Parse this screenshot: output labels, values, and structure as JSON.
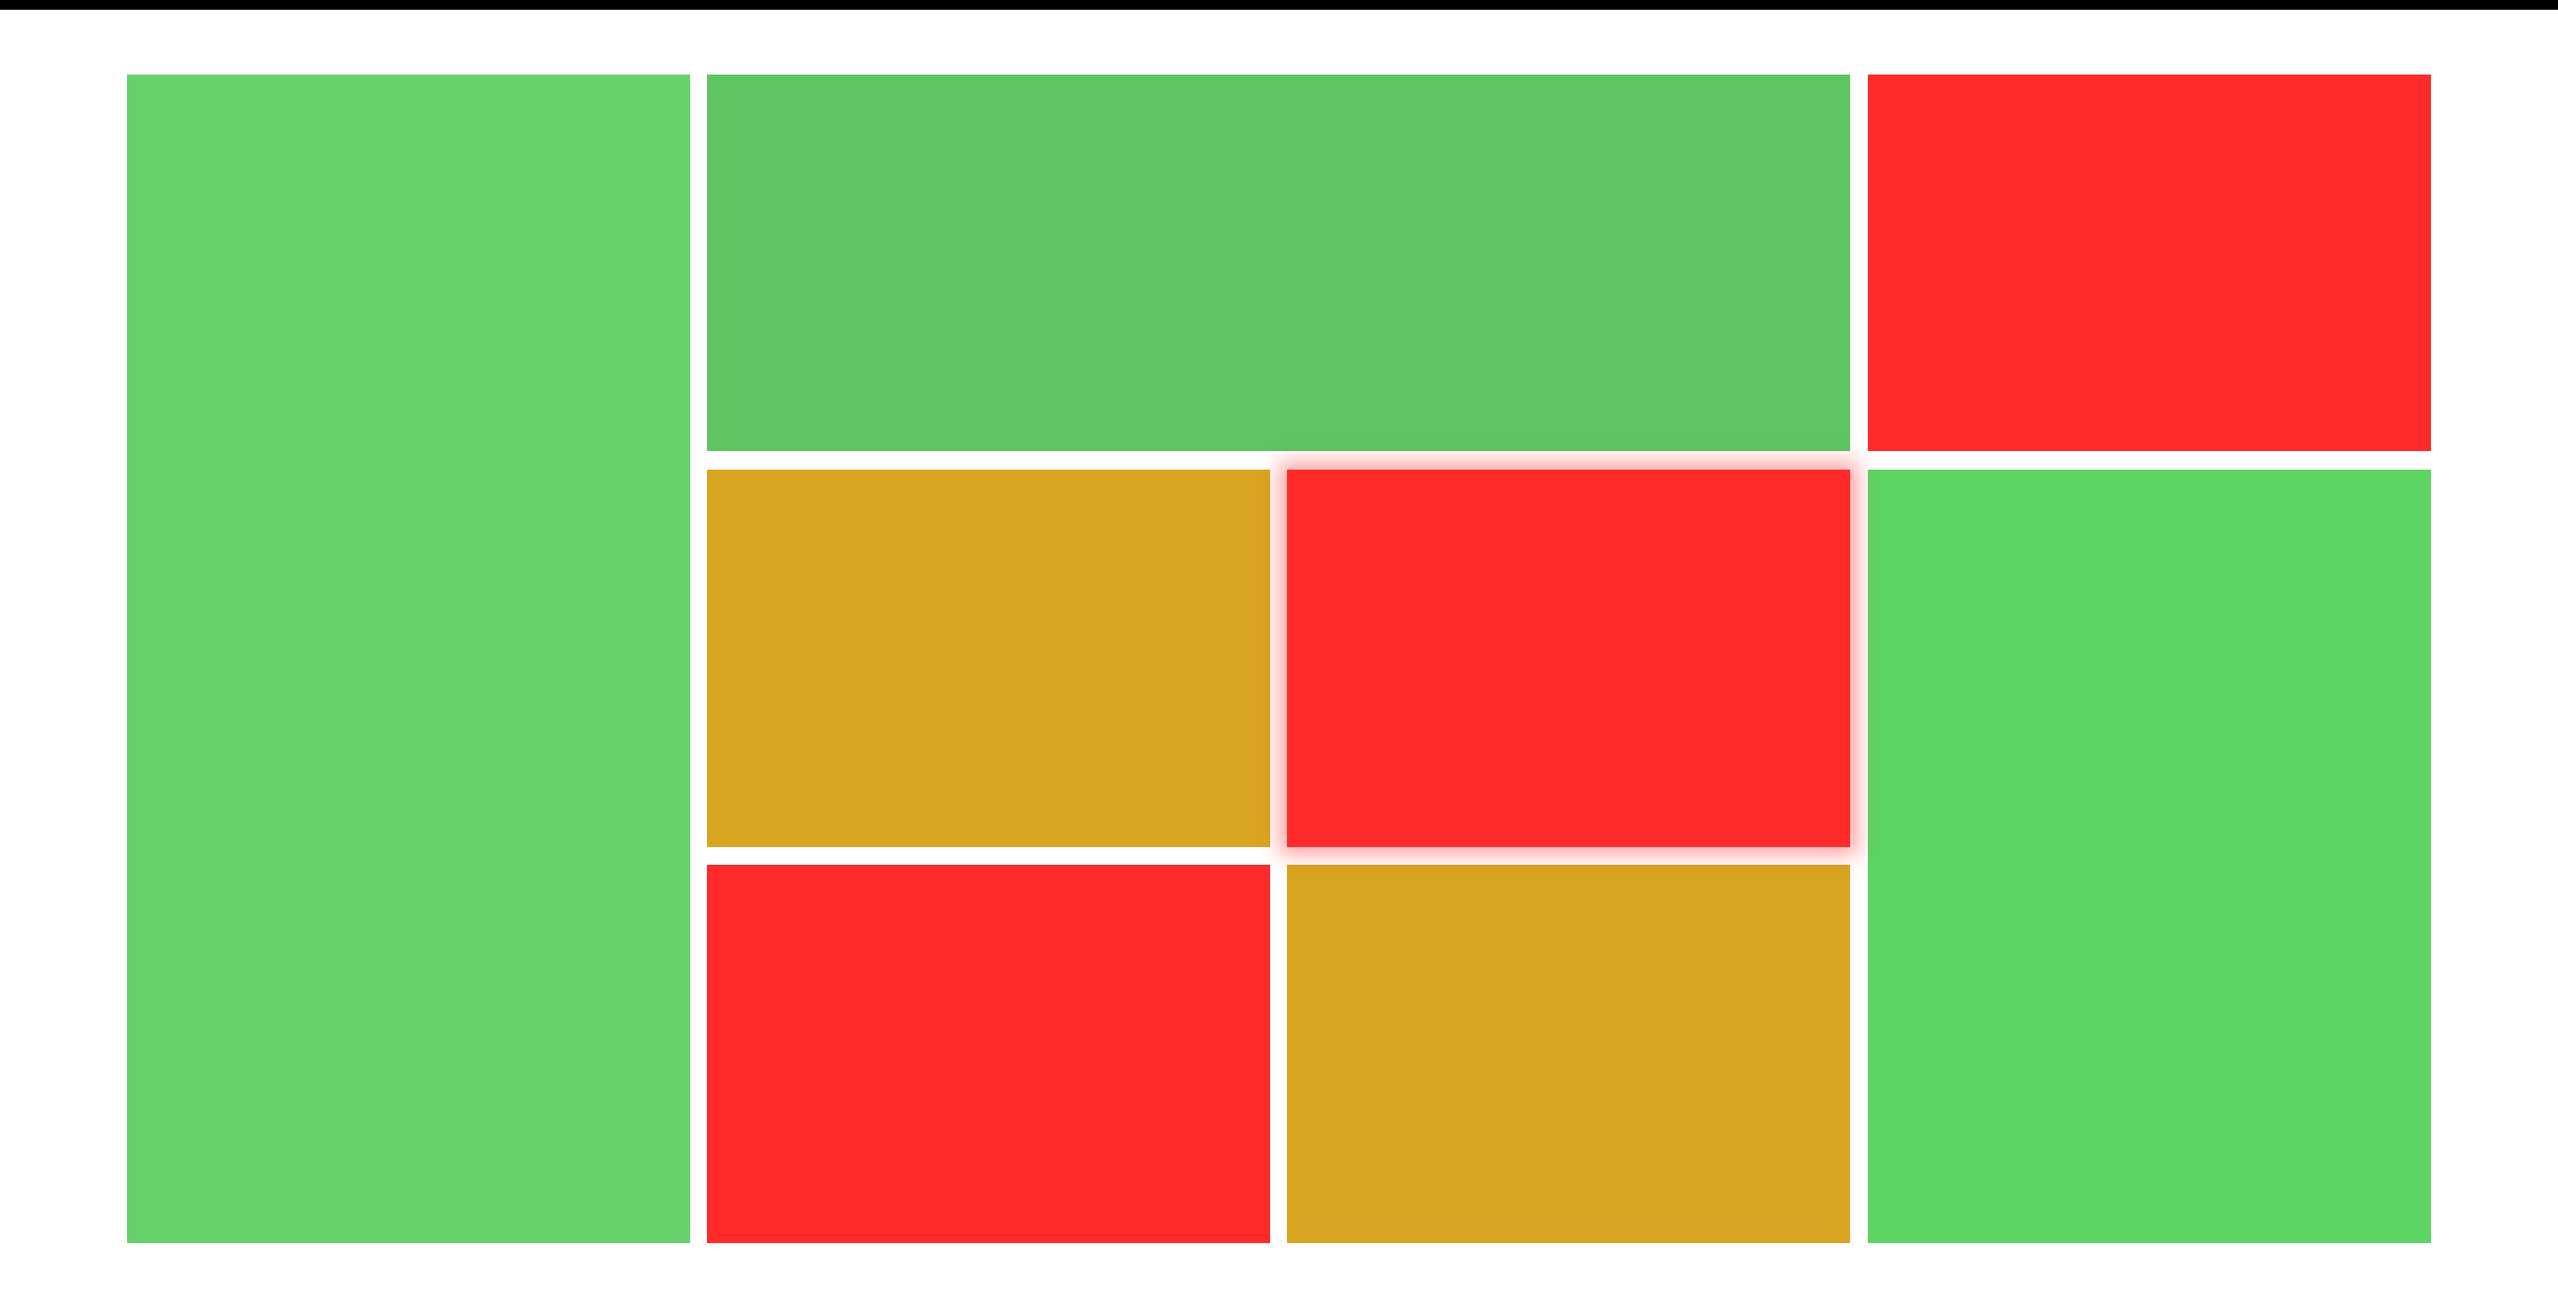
{
  "colors": {
    "background": "#ffffff",
    "top_bar": "#000000"
  },
  "tiles": [
    {
      "id": "tile-1",
      "color": "#66d16a",
      "selected": false
    },
    {
      "id": "tile-2",
      "color": "#5ec562",
      "selected": false
    },
    {
      "id": "tile-3",
      "color": "#ff2a2a",
      "selected": false
    },
    {
      "id": "tile-4",
      "color": "#d9a521",
      "selected": false
    },
    {
      "id": "tile-5",
      "color": "#ff2a2a",
      "selected": true
    },
    {
      "id": "tile-6",
      "color": "#ff2a2a",
      "selected": false
    },
    {
      "id": "tile-7",
      "color": "#d9a521",
      "selected": false
    },
    {
      "id": "tile-8",
      "color": "#5dd563",
      "selected": false
    }
  ]
}
